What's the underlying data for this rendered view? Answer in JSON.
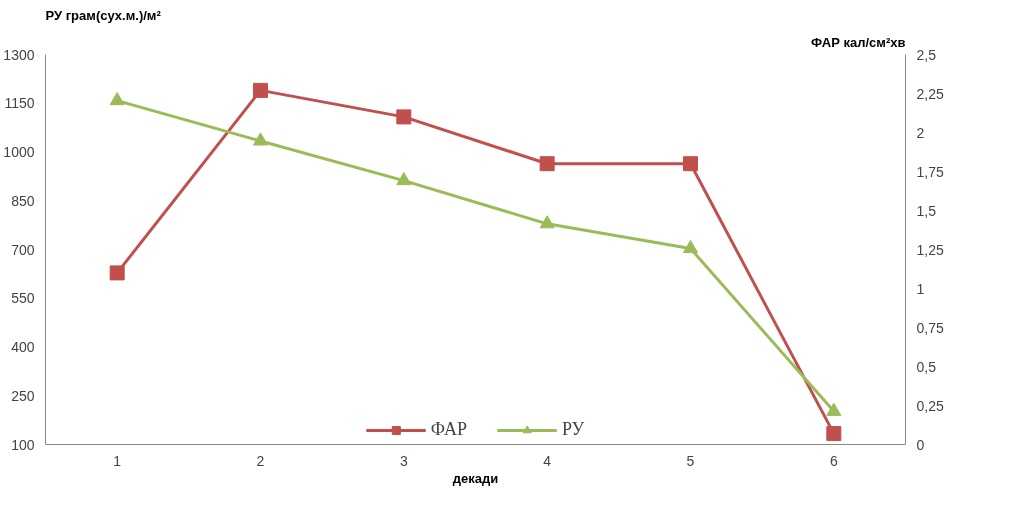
{
  "chart_data": {
    "type": "line",
    "ylabel": "РУ грам(сух.м.)/м²",
    "y2label": "ФАР кал/см²хв",
    "xlabel": "декади",
    "categories": [
      "1",
      "2",
      "3",
      "4",
      "5",
      "6"
    ],
    "series": [
      {
        "name": "ФАР",
        "color": "#c0504d",
        "marker": "square",
        "axis": "y2",
        "values": [
          1.1,
          2.27,
          2.1,
          1.8,
          1.8,
          0.07
        ]
      },
      {
        "name": "РУ",
        "color": "#9bbb59",
        "marker": "triangle",
        "values": [
          1158,
          1034,
          912,
          779,
          703,
          202
        ]
      }
    ],
    "ylim": [
      100,
      1300
    ],
    "yticks": [
      100,
      250,
      400,
      550,
      700,
      850,
      1000,
      1150,
      1300
    ],
    "y2lim": [
      0,
      2.5
    ],
    "y2ticks": [
      0,
      {
        "value": 0.25,
        "label": "0,25"
      },
      {
        "value": 0.5,
        "label": "0,5"
      },
      {
        "value": 0.75,
        "label": "0,75"
      },
      1,
      {
        "value": 1.25,
        "label": "1,25"
      },
      {
        "value": 1.5,
        "label": "1,5"
      },
      {
        "value": 1.75,
        "label": "1,75"
      },
      2,
      {
        "value": 2.25,
        "label": "2,25"
      },
      {
        "value": 2.5,
        "label": "2,5"
      }
    ],
    "grid": false,
    "legend": "bottom",
    "line_style": "solid"
  }
}
